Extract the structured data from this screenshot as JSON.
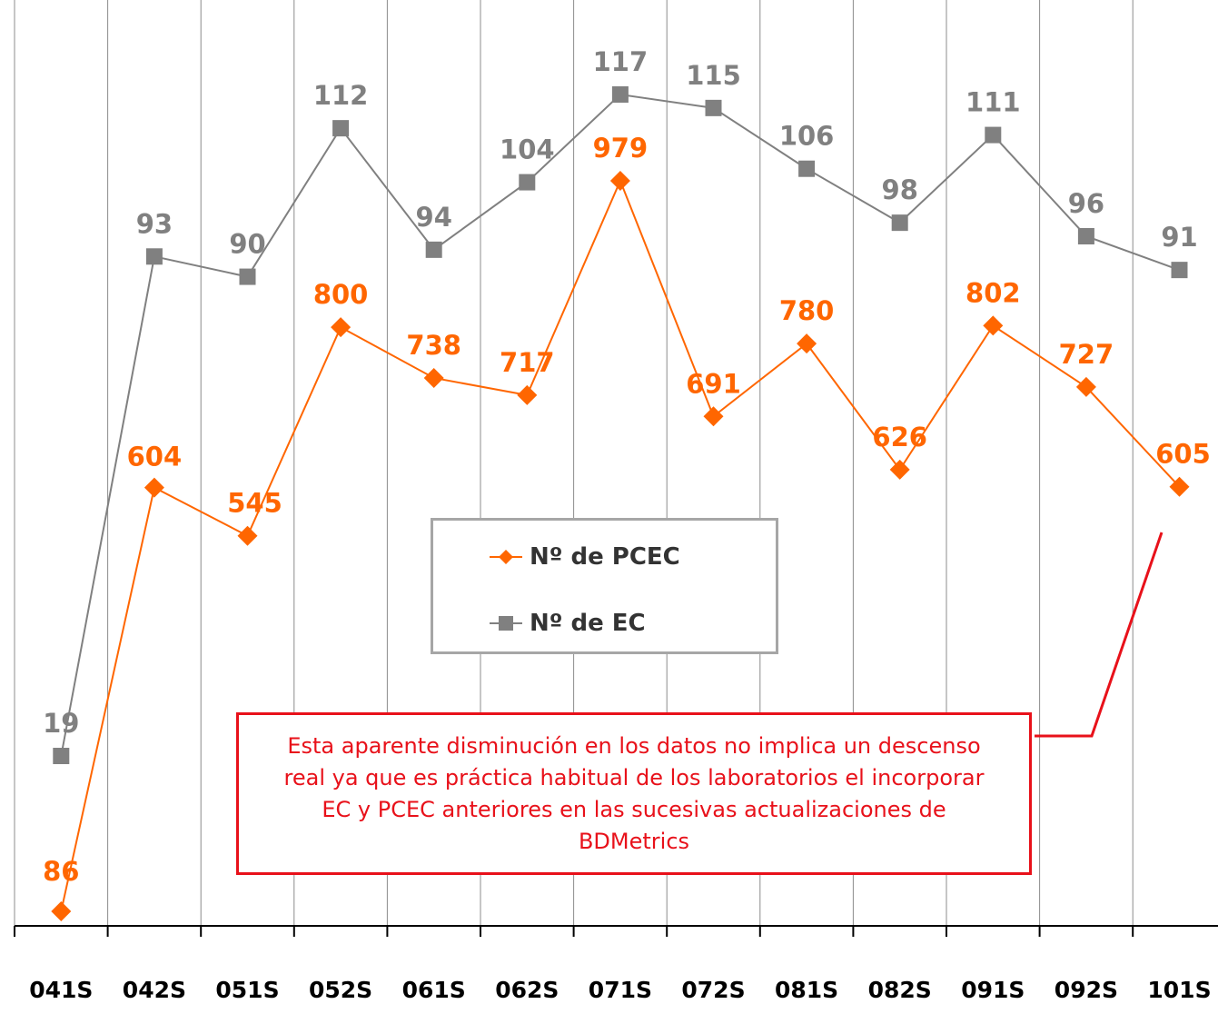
{
  "chart_data": {
    "type": "line",
    "categories": [
      "041S",
      "042S",
      "051S",
      "052S",
      "061S",
      "062S",
      "071S",
      "072S",
      "081S",
      "082S",
      "091S",
      "092S",
      "101S"
    ],
    "series": [
      {
        "name": "Nº de PCEC",
        "color": "#ff6600",
        "marker": "diamond",
        "values": [
          86,
          604,
          545,
          800,
          738,
          717,
          979,
          691,
          780,
          626,
          802,
          727,
          605
        ]
      },
      {
        "name": "Nº de EC",
        "color": "#808080",
        "marker": "square",
        "values": [
          19,
          93,
          90,
          112,
          94,
          104,
          117,
          115,
          106,
          98,
          111,
          96,
          91
        ]
      }
    ],
    "grid": "vertical",
    "legend_position": "center",
    "annotation": "Esta aparente disminución en los datos no implica un descenso real ya que es práctica habitual de los laboratorios el incorporar EC y PCEC anteriores en las sucesivas actualizaciones de BDMetrics",
    "annotation_color": "#e8111a"
  }
}
